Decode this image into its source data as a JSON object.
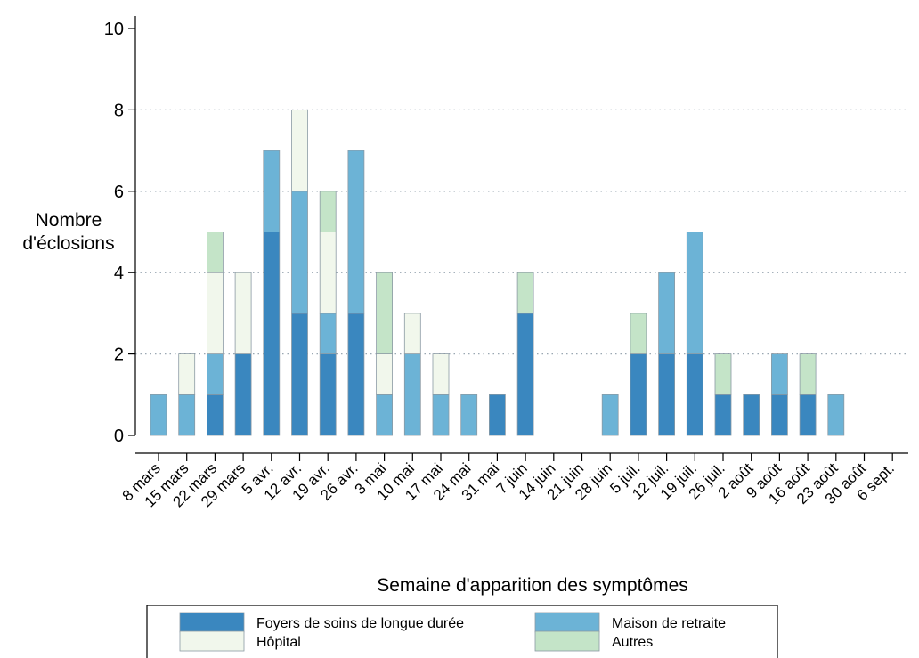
{
  "chart_data": {
    "type": "bar",
    "stacked": true,
    "title": "",
    "xlabel": "Semaine d'apparition des symptômes",
    "ylabel": "Nombre d'éclosions",
    "ylim": [
      0,
      10
    ],
    "yticks": [
      0,
      2,
      4,
      6,
      8,
      10
    ],
    "grid": "horizontal dotted",
    "legend_position": "bottom",
    "categories": [
      "8 mars",
      "15 mars",
      "22 mars",
      "29 mars",
      "5 avr.",
      "12 avr.",
      "19 avr.",
      "26 avr.",
      "3 mai",
      "10 mai",
      "17 mai",
      "24 mai",
      "31 mai",
      "7 juin",
      "14 juin",
      "21 juin",
      "28 juin",
      "5 juil.",
      "12 juil.",
      "19 juil.",
      "26 juil.",
      "2 août",
      "9 août",
      "16 août",
      "23 août",
      "30 août",
      "6 sept."
    ],
    "series": [
      {
        "name": "Foyers de soins de longue durée",
        "color": "#3a87bf",
        "values": [
          0,
          0,
          1,
          2,
          5,
          3,
          2,
          3,
          0,
          0,
          0,
          0,
          1,
          3,
          0,
          0,
          0,
          2,
          2,
          2,
          1,
          1,
          1,
          1,
          0,
          0,
          0
        ]
      },
      {
        "name": "Maison de retraite",
        "color": "#6cb3d6",
        "values": [
          1,
          1,
          1,
          0,
          2,
          3,
          1,
          4,
          1,
          2,
          1,
          1,
          0,
          0,
          0,
          0,
          1,
          0,
          2,
          3,
          0,
          0,
          1,
          0,
          1,
          0,
          0
        ]
      },
      {
        "name": "Hôpital",
        "color": "#f1f7ec",
        "values": [
          0,
          1,
          2,
          2,
          0,
          2,
          2,
          0,
          1,
          1,
          1,
          0,
          0,
          0,
          0,
          0,
          0,
          0,
          0,
          0,
          0,
          0,
          0,
          0,
          0,
          0,
          0
        ]
      },
      {
        "name": "Autres",
        "color": "#c4e4c8",
        "values": [
          0,
          0,
          1,
          0,
          0,
          0,
          1,
          0,
          2,
          0,
          0,
          0,
          0,
          1,
          0,
          0,
          0,
          1,
          0,
          0,
          1,
          0,
          0,
          1,
          0,
          0,
          0
        ]
      }
    ]
  }
}
